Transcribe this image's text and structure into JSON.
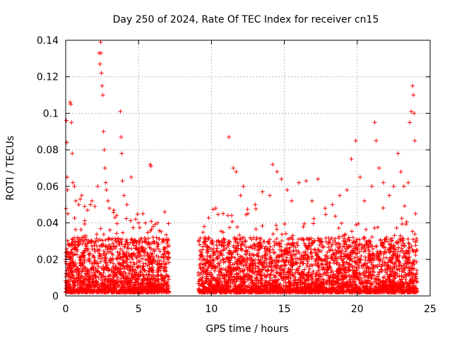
{
  "chart_data": {
    "type": "scatter",
    "title": "Day 250 of 2024, Rate Of TEC Index for receiver cn15",
    "xlabel": "GPS time / hours",
    "ylabel": "ROTI / TECUs",
    "xlim": [
      0,
      25
    ],
    "ylim": [
      0,
      0.14
    ],
    "x_ticks": [
      0,
      5,
      10,
      15,
      20,
      25
    ],
    "y_ticks": [
      0,
      0.02,
      0.04,
      0.06,
      0.08,
      0.1,
      0.12,
      0.14
    ],
    "x_tick_labels": [
      "0",
      "5",
      "10",
      "15",
      "20",
      "25"
    ],
    "y_tick_labels": [
      "0",
      "0.02",
      "0.04",
      "0.06",
      "0.08",
      "0.1",
      "0.12",
      "0.14"
    ],
    "grid": true,
    "marker": "+",
    "color": "#ff0000",
    "data_gap_hours": [
      7.1,
      9.1
    ],
    "series": [
      {
        "name": "ROTI",
        "points": [
          [
            0.05,
            0.096
          ],
          [
            0.08,
            0.084
          ],
          [
            0.1,
            0.065
          ],
          [
            0.12,
            0.058
          ],
          [
            0.15,
            0.045
          ],
          [
            0.3,
            0.106
          ],
          [
            0.35,
            0.105
          ],
          [
            0.4,
            0.095
          ],
          [
            0.45,
            0.078
          ],
          [
            0.5,
            0.062
          ],
          [
            0.6,
            0.06
          ],
          [
            0.7,
            0.052
          ],
          [
            0.9,
            0.05
          ],
          [
            1.0,
            0.053
          ],
          [
            1.1,
            0.055
          ],
          [
            1.3,
            0.049
          ],
          [
            1.5,
            0.047
          ],
          [
            1.7,
            0.05
          ],
          [
            1.8,
            0.052
          ],
          [
            2.0,
            0.049
          ],
          [
            2.2,
            0.06
          ],
          [
            2.3,
            0.133
          ],
          [
            2.35,
            0.127
          ],
          [
            2.4,
            0.139
          ],
          [
            2.42,
            0.133
          ],
          [
            2.45,
            0.122
          ],
          [
            2.5,
            0.115
          ],
          [
            2.55,
            0.11
          ],
          [
            2.6,
            0.09
          ],
          [
            2.65,
            0.08
          ],
          [
            2.7,
            0.07
          ],
          [
            2.75,
            0.062
          ],
          [
            2.8,
            0.058
          ],
          [
            2.9,
            0.052
          ],
          [
            3.0,
            0.048
          ],
          [
            3.3,
            0.047
          ],
          [
            3.5,
            0.044
          ],
          [
            3.75,
            0.101
          ],
          [
            3.8,
            0.087
          ],
          [
            3.85,
            0.078
          ],
          [
            3.9,
            0.063
          ],
          [
            4.0,
            0.055
          ],
          [
            4.2,
            0.05
          ],
          [
            4.5,
            0.065
          ],
          [
            4.8,
            0.042
          ],
          [
            5.0,
            0.04
          ],
          [
            5.3,
            0.045
          ],
          [
            5.8,
            0.072
          ],
          [
            5.85,
            0.071
          ],
          [
            6.0,
            0.038
          ],
          [
            6.3,
            0.04
          ],
          [
            6.8,
            0.046
          ],
          [
            7.0,
            0.03
          ],
          [
            9.2,
            0.028
          ],
          [
            9.5,
            0.038
          ],
          [
            9.8,
            0.032
          ],
          [
            10.3,
            0.048
          ],
          [
            10.8,
            0.045
          ],
          [
            11.2,
            0.087
          ],
          [
            11.5,
            0.07
          ],
          [
            11.7,
            0.068
          ],
          [
            12.0,
            0.055
          ],
          [
            12.2,
            0.06
          ],
          [
            12.5,
            0.045
          ],
          [
            13.0,
            0.05
          ],
          [
            13.5,
            0.057
          ],
          [
            14.0,
            0.055
          ],
          [
            14.2,
            0.072
          ],
          [
            14.5,
            0.068
          ],
          [
            14.8,
            0.064
          ],
          [
            15.2,
            0.058
          ],
          [
            15.5,
            0.052
          ],
          [
            16.0,
            0.062
          ],
          [
            16.5,
            0.063
          ],
          [
            16.9,
            0.052
          ],
          [
            17.3,
            0.064
          ],
          [
            17.8,
            0.048
          ],
          [
            18.3,
            0.05
          ],
          [
            18.8,
            0.055
          ],
          [
            19.3,
            0.058
          ],
          [
            19.6,
            0.075
          ],
          [
            19.9,
            0.085
          ],
          [
            20.2,
            0.065
          ],
          [
            20.5,
            0.052
          ],
          [
            21.0,
            0.06
          ],
          [
            21.2,
            0.095
          ],
          [
            21.3,
            0.085
          ],
          [
            21.5,
            0.07
          ],
          [
            21.8,
            0.062
          ],
          [
            22.2,
            0.055
          ],
          [
            22.5,
            0.06
          ],
          [
            22.8,
            0.078
          ],
          [
            23.0,
            0.068
          ],
          [
            23.2,
            0.06
          ],
          [
            23.5,
            0.062
          ],
          [
            23.6,
            0.095
          ],
          [
            23.7,
            0.101
          ],
          [
            23.8,
            0.115
          ],
          [
            23.85,
            0.11
          ],
          [
            23.9,
            0.1
          ],
          [
            23.95,
            0.085
          ],
          [
            24.0,
            0.045
          ]
        ]
      }
    ]
  }
}
